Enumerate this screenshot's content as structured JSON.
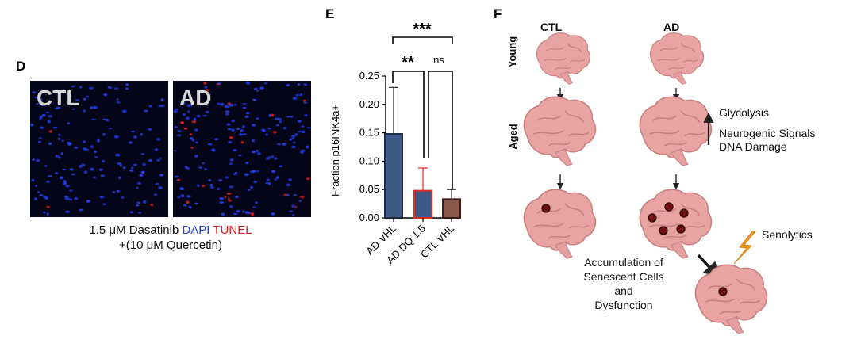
{
  "panel_d": {
    "letter": "D",
    "ctl_label": "CTL",
    "ad_label": "AD",
    "caption_line1_prefix": "1.5 μM Dasatinib",
    "caption_dapi": "DAPI",
    "caption_tunel": "TUNEL",
    "caption_line2": "+(10 μM Quercetin)",
    "colors": {
      "dapi": "#1f3de0",
      "tunel": "#e01818",
      "background": "#05051a"
    }
  },
  "panel_e": {
    "letter": "E",
    "significance": {
      "top": "***",
      "left": "**",
      "right": "ns"
    }
  },
  "chart_data": {
    "type": "bar",
    "title": "",
    "xlabel": "",
    "ylabel": "Fraction p16INK4a+",
    "ylim": [
      0,
      0.25
    ],
    "yticks": [
      "0.00",
      "0.05",
      "0.10",
      "0.15",
      "0.20",
      "0.25"
    ],
    "categories": [
      "AD VHL",
      "AD DQ 1.5",
      "CTL VHL"
    ],
    "values": [
      0.148,
      0.048,
      0.033
    ],
    "errors": [
      0.082,
      0.04,
      0.017
    ],
    "fill_colors": [
      "#3d5a86",
      "#3d5a86",
      "#8a5a4e"
    ],
    "edge_colors": [
      "#1a2a40",
      "#e02a20",
      "#3a1f18"
    ],
    "grid": false
  },
  "panel_f": {
    "letter": "F",
    "col_ctl": "CTL",
    "col_ad": "AD",
    "row_young": "Young",
    "row_aged": "Aged",
    "glycolysis": "Glycolysis",
    "neurogenic": "Neurogenic Signals",
    "dna_damage": "DNA Damage",
    "senolytics": "Senolytics",
    "accum_line1": "Accumulation of",
    "accum_line2": "Senescent Cells and",
    "accum_line3": "Dysfunction",
    "brain_color": "#e8a3a3"
  }
}
